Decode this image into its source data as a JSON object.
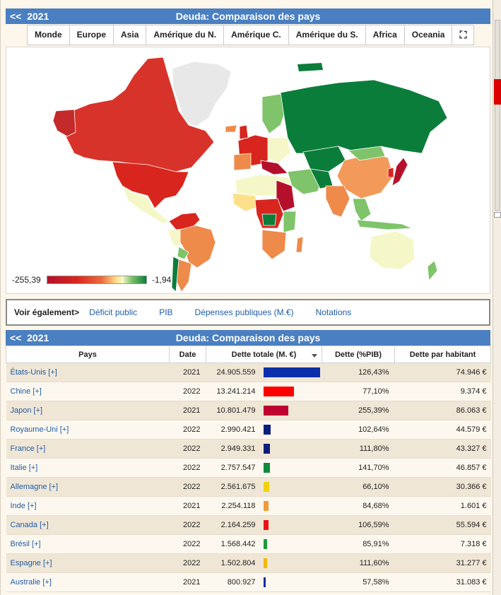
{
  "header": {
    "back": "<<",
    "year": "2021",
    "title": "Deuda: Comparaison des pays"
  },
  "tabs": [
    "Monde",
    "Europe",
    "Asia",
    "Amérique du N.",
    "Amérique C.",
    "Amérique du S.",
    "Africa",
    "Oceania"
  ],
  "map": {
    "legend_min": "-255,39",
    "legend_max": "-1,94",
    "colors": {
      "high_debt": "#b5102b",
      "red": "#d8261e",
      "orange": "#ee8a4a",
      "light": "#f6f7c8",
      "green": "#0b7d3b",
      "nodata": "#e8e8e8"
    }
  },
  "see_also": {
    "label": "Voir également>",
    "links": [
      "Déficit public",
      "PIB",
      "Dépenses publiques (M.€)",
      "Notations"
    ]
  },
  "table_header": {
    "back": "<<",
    "year": "2021",
    "title": "Deuda: Comparaison des pays"
  },
  "table": {
    "columns": [
      "Pays",
      "Date",
      "Dette totale (M. €)",
      "Dette (%PIB)",
      "Dette par habitant"
    ],
    "rows": [
      {
        "pays": "États-Unis [+]",
        "date": "2021",
        "total": "24.905.559",
        "value": 24905559,
        "color": "#0b2faa",
        "pct": "126,43%",
        "habitant": "74.946 €"
      },
      {
        "pays": "Chine [+]",
        "date": "2022",
        "total": "13.241.214",
        "value": 13241214,
        "color": "#ff0000",
        "pct": "77,10%",
        "habitant": "9.374 €"
      },
      {
        "pays": "Japon [+]",
        "date": "2021",
        "total": "10.801.479",
        "value": 10801479,
        "color": "#c00030",
        "pct": "255,39%",
        "habitant": "86.063 €"
      },
      {
        "pays": "Royaume-Uni [+]",
        "date": "2022",
        "total": "2.990.421",
        "value": 2990421,
        "color": "#0a1f7a",
        "pct": "102,64%",
        "habitant": "44.579 €"
      },
      {
        "pays": "France [+]",
        "date": "2022",
        "total": "2.949.331",
        "value": 2949331,
        "color": "#0a1f7a",
        "pct": "111,80%",
        "habitant": "43.327 €"
      },
      {
        "pays": "Italie [+]",
        "date": "2022",
        "total": "2.757.547",
        "value": 2757547,
        "color": "#0f8a3c",
        "pct": "141,70%",
        "habitant": "46.857 €"
      },
      {
        "pays": "Allemagne [+]",
        "date": "2022",
        "total": "2.561.675",
        "value": 2561675,
        "color": "#f2d200",
        "pct": "66,10%",
        "habitant": "30.366 €"
      },
      {
        "pays": "Inde [+]",
        "date": "2021",
        "total": "2.254.118",
        "value": 2254118,
        "color": "#f39a3a",
        "pct": "84,68%",
        "habitant": "1.601 €"
      },
      {
        "pays": "Canada [+]",
        "date": "2022",
        "total": "2.164.259",
        "value": 2164259,
        "color": "#ee1111",
        "pct": "106,59%",
        "habitant": "55.594 €"
      },
      {
        "pays": "Brésil [+]",
        "date": "2022",
        "total": "1.568.442",
        "value": 1568442,
        "color": "#1a9a3a",
        "pct": "85,91%",
        "habitant": "7.318 €"
      },
      {
        "pays": "Espagne [+]",
        "date": "2022",
        "total": "1.502.804",
        "value": 1502804,
        "color": "#f5b800",
        "pct": "111,60%",
        "habitant": "31.277 €"
      },
      {
        "pays": "Australie [+]",
        "date": "2021",
        "total": "800.927",
        "value": 800927,
        "color": "#0a2fa0",
        "pct": "57,58%",
        "habitant": "31.083 €"
      }
    ]
  }
}
